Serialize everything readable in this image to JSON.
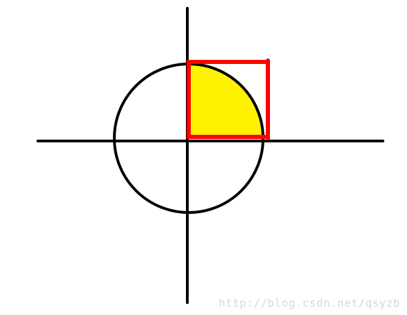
{
  "diagram": {
    "watermark": "http://blog.csdn.net/qsyzb",
    "colors": {
      "background": "#ffffff",
      "axis": "#000000",
      "circle": "#000000",
      "quarter_fill": "#fff200",
      "square": "#ff0000"
    }
  }
}
